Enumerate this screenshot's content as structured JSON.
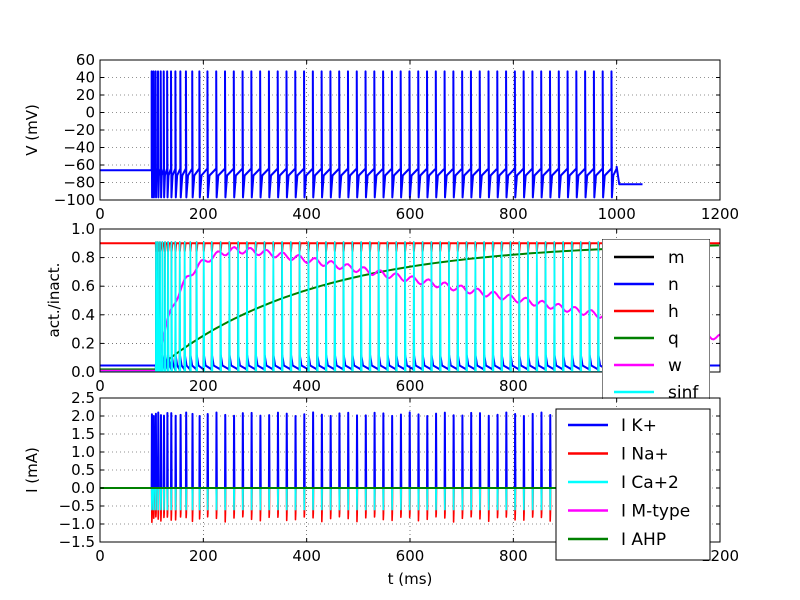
{
  "chart_data": [
    {
      "type": "line",
      "ylabel": "V (mV)",
      "xlim": [
        0,
        1200
      ],
      "ylim": [
        -100,
        60
      ],
      "xticks": [
        "0",
        "200",
        "400",
        "600",
        "800",
        "1000",
        "1200"
      ],
      "yticks": [
        "−100",
        "−80",
        "−60",
        "−40",
        "−20",
        "0",
        "20",
        "40",
        "60"
      ],
      "grid": true,
      "series": [
        {
          "color": "#0000ff",
          "stim_on": 100,
          "stim_off": 1000,
          "t_end": 1050,
          "rest": -66,
          "peak": 47,
          "trough": -97,
          "end_value": -82
        }
      ]
    },
    {
      "type": "line",
      "ylabel": "act./inact.",
      "xlim": [
        0,
        1200
      ],
      "ylim": [
        0.0,
        1.1
      ],
      "xticks": [
        "0",
        "200",
        "400",
        "600",
        "800",
        "",
        ""
      ],
      "yticks": [
        "0.0",
        "0.2",
        "0.4",
        "0.6",
        "0.8",
        "1.0"
      ],
      "grid": true,
      "legend_position": "right",
      "series": [
        {
          "name": "m",
          "color": "#000000"
        },
        {
          "name": "n",
          "color": "#0000ff"
        },
        {
          "name": "h",
          "color": "#ff0000"
        },
        {
          "name": "q",
          "color": "#008000"
        },
        {
          "name": "w",
          "color": "#ff00ff"
        },
        {
          "name": "sinf",
          "color": "#00ffff"
        }
      ]
    },
    {
      "type": "line",
      "ylabel": "I  (mA)",
      "xlabel": "t (ms)",
      "xlim": [
        0,
        1200
      ],
      "ylim": [
        -1.5,
        2.5
      ],
      "xticks": [
        "0",
        "200",
        "400",
        "600",
        "800",
        "",
        "1200"
      ],
      "yticks": [
        "−1.5",
        "−1.0",
        "−0.5",
        "0.0",
        "0.5",
        "1.0",
        "1.5",
        "2.0",
        "2.5"
      ],
      "grid": true,
      "legend_position": "right",
      "series": [
        {
          "name": "I K+",
          "color": "#0000ff",
          "peak": 2.05
        },
        {
          "name": "I Na+",
          "color": "#ff0000",
          "trough": -0.95
        },
        {
          "name": "I Ca+2",
          "color": "#00ffff",
          "trough": -0.6
        },
        {
          "name": "I M-type",
          "color": "#ff00ff"
        },
        {
          "name": "I AHP",
          "color": "#008000"
        }
      ]
    }
  ]
}
